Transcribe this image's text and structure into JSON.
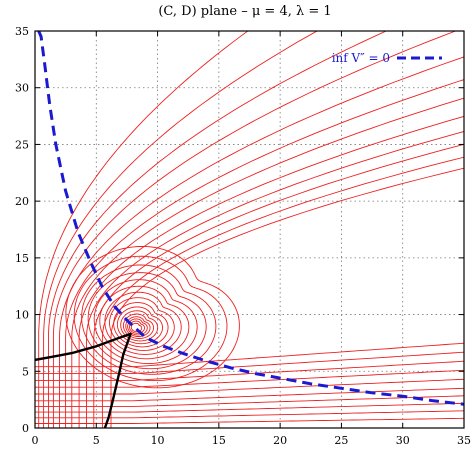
{
  "chart_data": {
    "type": "line",
    "title": "(C, D) plane – μ = 4, λ = 1",
    "xlabel": "",
    "ylabel": "",
    "xlim": [
      0,
      35
    ],
    "ylim": [
      0,
      35
    ],
    "x_ticks": [
      0,
      5,
      10,
      15,
      20,
      25,
      30,
      35
    ],
    "y_ticks": [
      0,
      5,
      10,
      15,
      20,
      25,
      30,
      35
    ],
    "grid": true,
    "legend_position": "top-right",
    "colors": {
      "contours": "#ee2020",
      "inflection_curve": "#1a1ad0",
      "boundary": "#000000"
    },
    "contour_family": {
      "description_visible": "",
      "closed_level_scales": [
        0.45,
        0.65,
        0.85,
        1.05,
        1.3,
        1.6,
        1.95,
        2.35,
        2.8,
        3.3,
        3.85,
        4.45,
        5.1,
        5.8,
        6.6,
        7.5
      ],
      "center": [
        10,
        10
      ],
      "open_vertical_x": [
        0.3,
        0.7,
        1.1,
        1.5,
        2.0,
        2.5,
        3.0,
        3.6,
        4.2,
        4.8,
        5.5,
        6.2
      ],
      "open_horizontal_y": [
        0.4,
        0.9,
        1.4,
        1.9,
        2.4,
        3.0,
        3.6,
        4.2,
        4.8,
        5.4
      ]
    },
    "series": [
      {
        "name": "inf V'' = 0",
        "style": "dashed",
        "x": [
          0.3,
          0.5,
          0.8,
          1.2,
          1.7,
          2.5,
          3.5,
          4.5,
          5.5,
          6.5,
          7.5,
          9,
          10.5,
          12,
          14,
          16,
          18,
          20,
          22.5,
          25,
          27.5,
          30,
          32.5,
          35
        ],
        "y": [
          35,
          34.5,
          32,
          28.5,
          25,
          20.9,
          17.3,
          14.7,
          12.4,
          10.7,
          9.5,
          8.0,
          7.2,
          6.6,
          5.9,
          5.3,
          4.8,
          4.4,
          3.9,
          3.5,
          3.1,
          2.8,
          2.4,
          2.1
        ]
      },
      {
        "name": "",
        "style": "solid-bold",
        "x": [
          0,
          1,
          2,
          3,
          4,
          5,
          6,
          7,
          7.8,
          7.2,
          6.9,
          6.6,
          6.3,
          6.0,
          5.7
        ],
        "y": [
          6.0,
          6.2,
          6.4,
          6.6,
          6.9,
          7.2,
          7.6,
          8.0,
          8.3,
          6.5,
          5.0,
          3.6,
          2.2,
          0.9,
          0
        ]
      }
    ],
    "legend": [
      {
        "label": "inf V″ = 0",
        "series": "inf V'' = 0"
      }
    ]
  }
}
